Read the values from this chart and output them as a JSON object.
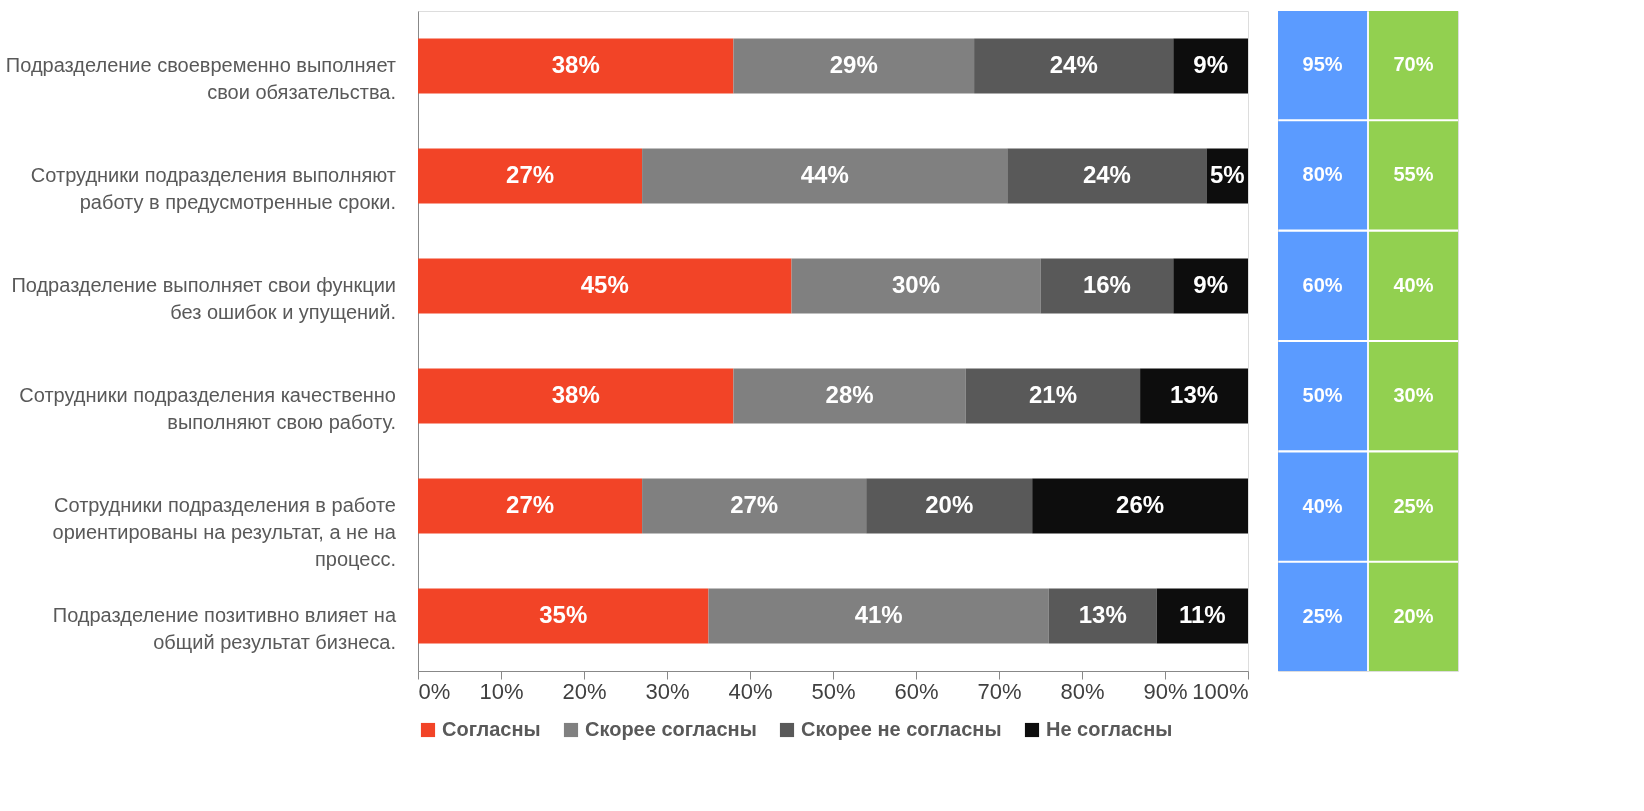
{
  "chart_data": [
    {
      "type": "bar",
      "orientation": "horizontal",
      "stacked": true,
      "categories": [
        "Подразделение своевременно выполняет свои обязательства.",
        "Сотрудники подразделения выполняют работу в предусмотренные сроки.",
        "Подразделение выполняет свои функции без ошибок и упущений.",
        "Сотрудники подразделения качественно выполняют свою работу.",
        "Сотрудники подразделения в работе ориентированы на результат, а не на процесс.",
        "Подразделение позитивно влияет на общий результат бизнеса."
      ],
      "series": [
        {
          "name": "Согласны",
          "color": "#f24427",
          "values": [
            38,
            27,
            45,
            38,
            27,
            35
          ],
          "value_labels": [
            "38%",
            "27%",
            "45%",
            "38%",
            "27%",
            "35%"
          ]
        },
        {
          "name": "Скорее согласны",
          "color": "#808080",
          "values": [
            29,
            44,
            30,
            28,
            27,
            41
          ],
          "value_labels": [
            "29%",
            "44%",
            "30%",
            "28%",
            "27%",
            "41%"
          ]
        },
        {
          "name": "Скорее не согласны",
          "color": "#595959",
          "values": [
            24,
            24,
            16,
            21,
            20,
            13
          ],
          "value_labels": [
            "24%",
            "24%",
            "16%",
            "21%",
            "20%",
            "13%"
          ]
        },
        {
          "name": "Не согласны",
          "color": "#0d0d0d",
          "values": [
            9,
            5,
            9,
            13,
            26,
            11
          ],
          "value_labels": [
            "9%",
            "5%",
            "9%",
            "13%",
            "26%",
            "11%"
          ]
        }
      ],
      "xlim": [
        0,
        100
      ],
      "xticks": [
        {
          "value": 0,
          "label": "0%"
        },
        {
          "value": 10,
          "label": "10%"
        },
        {
          "value": 20,
          "label": "20%"
        },
        {
          "value": 30,
          "label": "30%"
        },
        {
          "value": 40,
          "label": "40%"
        },
        {
          "value": 50,
          "label": "50%"
        },
        {
          "value": 60,
          "label": "60%"
        },
        {
          "value": 70,
          "label": "70%"
        },
        {
          "value": 80,
          "label": "80%"
        },
        {
          "value": 90,
          "label": "90%"
        },
        {
          "value": 100,
          "label": "100%"
        }
      ],
      "grid": false,
      "legend": "bottom"
    },
    {
      "type": "other",
      "annotations": [
        "95%",
        "70%",
        "80%",
        "55%",
        "60%",
        "40%",
        "50%",
        "30%",
        "40%",
        "25%",
        "25%",
        "20%"
      ],
      "colors": [
        "#5b9bff",
        "#92d050"
      ]
    }
  ]
}
